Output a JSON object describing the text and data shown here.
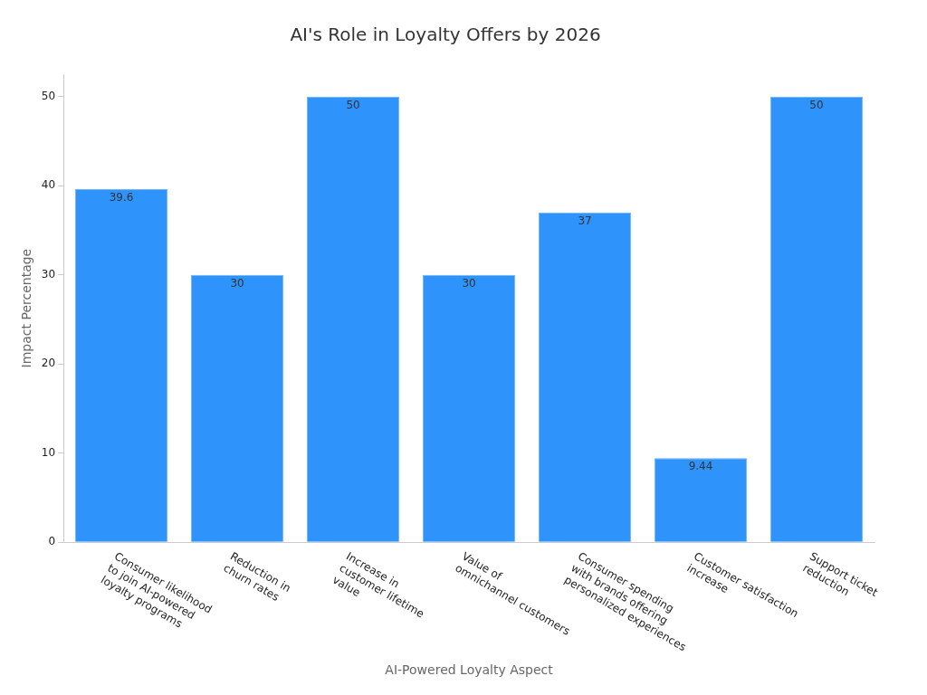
{
  "chart_data": {
    "type": "bar",
    "title": "AI's Role in Loyalty Offers by 2026",
    "xlabel": "AI-Powered Loyalty Aspect",
    "ylabel": "Impact Percentage",
    "categories": [
      "Consumer likelihood\nto join AI-powered\nloyalty programs",
      "Reduction in\nchurn rates",
      "Increase in\ncustomer lifetime\nvalue",
      "Value of\nomnichannel customers",
      "Consumer spending\nwith brands offering\npersonalized experiences",
      "Customer satisfaction\nincrease",
      "Support ticket\nreduction"
    ],
    "values": [
      39.6,
      30,
      50,
      30,
      37,
      9.44,
      50
    ],
    "color": "#2e93fa",
    "ylim": [
      0,
      52.5
    ],
    "yticks": [
      0,
      10,
      20,
      30,
      40,
      50
    ],
    "grid": false,
    "legend": false,
    "data_labels": true
  }
}
